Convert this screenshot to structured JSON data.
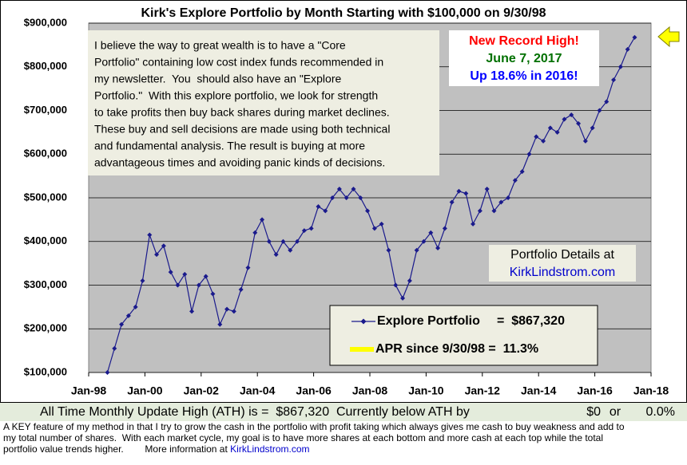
{
  "chart_data": {
    "type": "line",
    "title": "Kirk's Explore Portfolio by Month Starting with $100,000 on 9/30/98",
    "x": [
      "1998-09",
      "1998-12",
      "1999-03",
      "1999-06",
      "1999-09",
      "1999-12",
      "2000-03",
      "2000-06",
      "2000-09",
      "2000-12",
      "2001-03",
      "2001-06",
      "2001-09",
      "2001-12",
      "2002-03",
      "2002-06",
      "2002-09",
      "2002-12",
      "2003-03",
      "2003-06",
      "2003-09",
      "2003-12",
      "2004-03",
      "2004-06",
      "2004-09",
      "2004-12",
      "2005-03",
      "2005-06",
      "2005-09",
      "2005-12",
      "2006-03",
      "2006-06",
      "2006-09",
      "2006-12",
      "2007-03",
      "2007-06",
      "2007-09",
      "2007-12",
      "2008-03",
      "2008-06",
      "2008-09",
      "2008-12",
      "2009-03",
      "2009-06",
      "2009-09",
      "2009-12",
      "2010-03",
      "2010-06",
      "2010-09",
      "2010-12",
      "2011-03",
      "2011-06",
      "2011-09",
      "2011-12",
      "2012-03",
      "2012-06",
      "2012-09",
      "2012-12",
      "2013-03",
      "2013-06",
      "2013-09",
      "2013-12",
      "2014-03",
      "2014-06",
      "2014-09",
      "2014-12",
      "2015-03",
      "2015-06",
      "2015-09",
      "2015-12",
      "2016-03",
      "2016-06",
      "2016-09",
      "2016-12",
      "2017-03",
      "2017-06"
    ],
    "series": [
      {
        "name": "Explore Portfolio",
        "color": "#1a1a8c",
        "values": [
          100000,
          155000,
          210000,
          230000,
          250000,
          310000,
          415000,
          370000,
          390000,
          330000,
          300000,
          325000,
          240000,
          300000,
          320000,
          280000,
          210000,
          245000,
          240000,
          290000,
          340000,
          420000,
          450000,
          400000,
          370000,
          400000,
          380000,
          400000,
          425000,
          430000,
          480000,
          470000,
          500000,
          520000,
          500000,
          520000,
          500000,
          470000,
          430000,
          440000,
          380000,
          300000,
          270000,
          310000,
          380000,
          400000,
          420000,
          385000,
          430000,
          490000,
          515000,
          510000,
          440000,
          470000,
          520000,
          470000,
          490000,
          500000,
          540000,
          560000,
          600000,
          640000,
          630000,
          660000,
          650000,
          680000,
          690000,
          670000,
          630000,
          660000,
          700000,
          720000,
          770000,
          800000,
          840000,
          867320
        ]
      }
    ],
    "legend_value": "=  $867,320",
    "legend_extra": {
      "label": "APR since 9/30/98 =  11.3%",
      "color": "#ffff00"
    },
    "xlim": [
      "1998-01",
      "2018-01"
    ],
    "xticks": [
      {
        "value": "1998-01",
        "label": "Jan-98"
      },
      {
        "value": "2000-01",
        "label": "Jan-00"
      },
      {
        "value": "2002-01",
        "label": "Jan-02"
      },
      {
        "value": "2004-01",
        "label": "Jan-04"
      },
      {
        "value": "2006-01",
        "label": "Jan-06"
      },
      {
        "value": "2008-01",
        "label": "Jan-08"
      },
      {
        "value": "2010-01",
        "label": "Jan-10"
      },
      {
        "value": "2012-01",
        "label": "Jan-12"
      },
      {
        "value": "2014-01",
        "label": "Jan-14"
      },
      {
        "value": "2016-01",
        "label": "Jan-16"
      },
      {
        "value": "2018-01",
        "label": "Jan-18"
      }
    ],
    "ylim": [
      100000,
      900000
    ],
    "yticks": [
      {
        "value": 100000,
        "label": "$100,000"
      },
      {
        "value": 200000,
        "label": "$200,000"
      },
      {
        "value": 300000,
        "label": "$300,000"
      },
      {
        "value": 400000,
        "label": "$400,000"
      },
      {
        "value": 500000,
        "label": "$500,000"
      },
      {
        "value": 600000,
        "label": "$600,000"
      },
      {
        "value": 700000,
        "label": "$700,000"
      },
      {
        "value": 800000,
        "label": "$800,000"
      },
      {
        "value": 900000,
        "label": "$900,000"
      }
    ],
    "grid": true,
    "annotation": [
      "I believe the way to great wealth is to have a \"Core",
      "Portfolio\" containing low cost index funds recommended in",
      "my newsletter.  You  should also have an \"Explore",
      "Portfolio.\"  With this explore portfolio, we look for strength",
      "to take profits then buy back shares during market declines.",
      "These buy and sell decisions are made using both technical",
      "and fundamental analysis. The result is buying at more",
      "advantageous times and avoiding panic kinds of decisions."
    ],
    "record": [
      "New Record High!",
      "June 7, 2017",
      "Up 18.6% in 2016!"
    ],
    "details": [
      "Portfolio Details at",
      "KirkLindstrom.com"
    ]
  },
  "footer": {
    "ath": "All Time Monthly Update High (ATH) is =  $867,320  Currently below ATH by",
    "below_amount": "$0",
    "or": "or",
    "below_pct": "0.0%",
    "notes": [
      "A KEY feature of my method in that I try to grow the cash in the portfolio with profit taking which always gives me cash to buy weakness and add to",
      "my total number of shares.  With each market cycle, my goal is to have more shares at each bottom and more cash at each top while the total",
      "portfolio value trends higher.        More information at "
    ],
    "link": "KirkLindstrom.com"
  }
}
